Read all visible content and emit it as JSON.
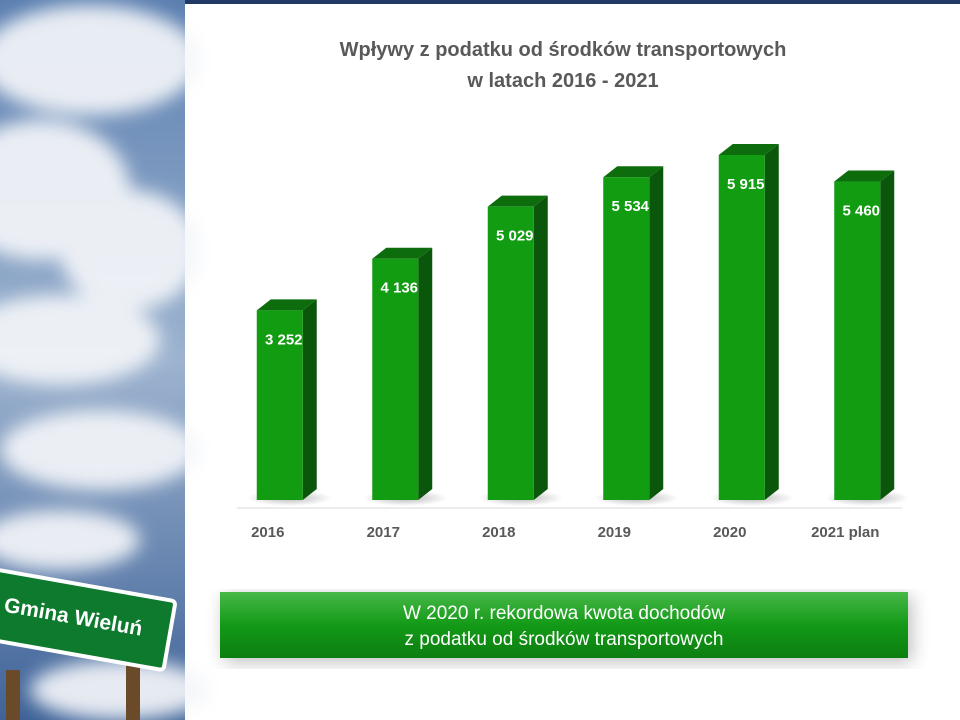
{
  "sign": {
    "text": "Gmina Wieluń"
  },
  "chart_data": {
    "type": "bar3d",
    "title": [
      "Wpływy z podatku od środków transportowych",
      "w latach 2016 - 2021"
    ],
    "categories": [
      "2016",
      "2017",
      "2018",
      "2019",
      "2020",
      "2021 plan"
    ],
    "values": [
      3252,
      4136,
      5029,
      5534,
      5915,
      5460
    ],
    "value_labels": [
      "3 252",
      "4 136",
      "5 029",
      "5 534",
      "5 915",
      "5 460"
    ],
    "color": "#129c12",
    "annotation": [
      "W 2020 r. rekordowa kwota dochodów",
      "z podatku od środków transportowych"
    ]
  }
}
